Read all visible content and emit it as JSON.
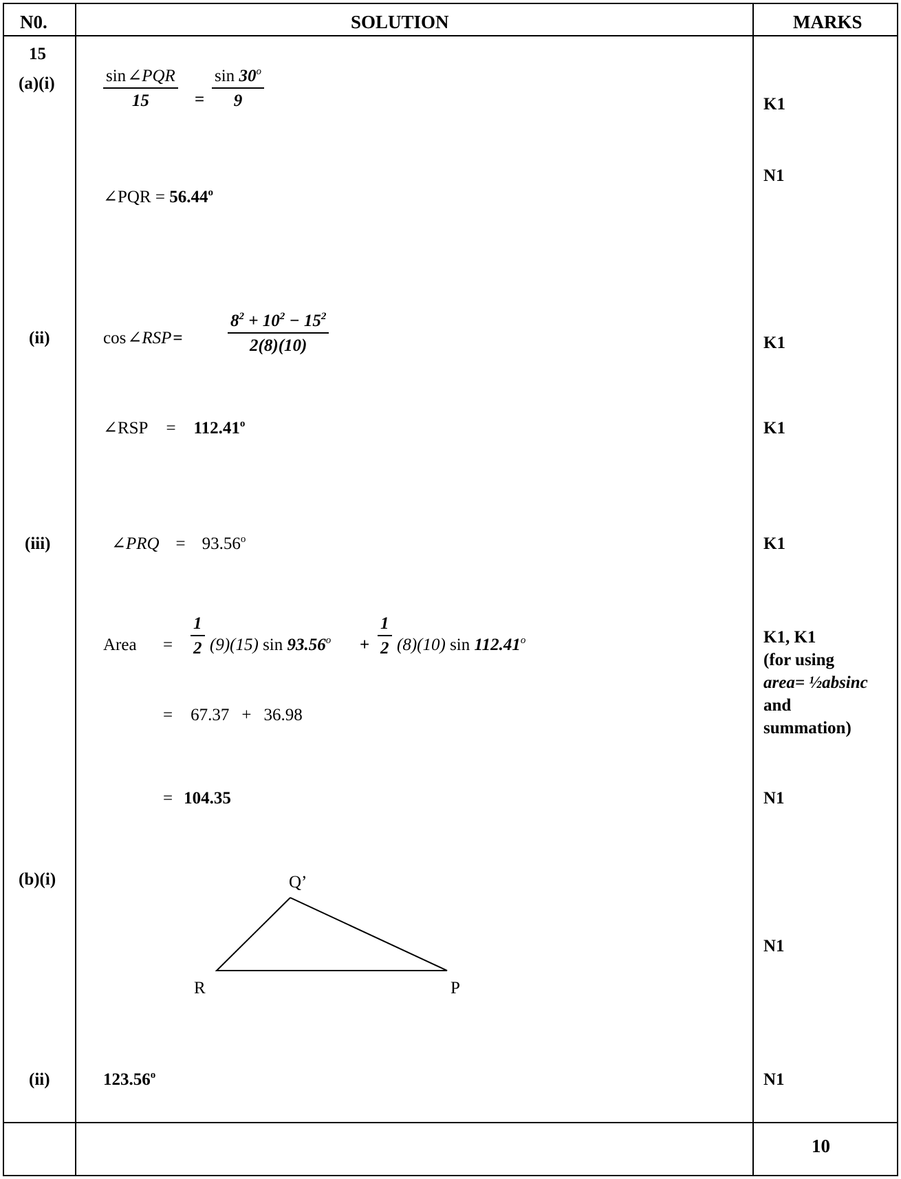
{
  "header": {
    "no": "N0.",
    "solution": "SOLUTION",
    "marks": "MARKS"
  },
  "question": "15",
  "parts": {
    "a_i": "(a)(i)",
    "a_ii": "(ii)",
    "a_iii": "(iii)",
    "b_i": "(b)(i)",
    "b_ii": "(ii)"
  },
  "a_i": {
    "num_fn": "sin",
    "num_angle": "∠PQR",
    "den_left": "15",
    "eq": "=",
    "num_right_fn": "sin",
    "num_right_val": "30",
    "num_right_deg": "o",
    "den_right": "9",
    "result_prefix": "∠PQR = ",
    "result_value": "56.44",
    "result_deg": "o",
    "mark1": "K1",
    "mark2": "N1"
  },
  "a_ii": {
    "lhs_fn": "cos",
    "lhs_angle": "∠RSP",
    "eq": "=",
    "num_a": "8",
    "num_a_exp": "2",
    "num_b": "10",
    "num_b_exp": "2",
    "num_c": "15",
    "num_c_exp": "2",
    "den": "2(8)(10)",
    "result_prefix": "∠RSP",
    "result_eq": "=",
    "result_value": "112.41",
    "result_deg": "o",
    "mark1": "K1",
    "mark2": "K1"
  },
  "a_iii": {
    "angle": "∠PRQ",
    "eq": "=",
    "value": "93.56",
    "deg": "o",
    "mark": "K1",
    "area_label": "Area",
    "area_eq": "=",
    "half_num": "1",
    "half_den": "2",
    "term1_args": "(9)(15)",
    "term1_fn": "sin",
    "term1_angle": "93.56",
    "term1_deg": "o",
    "plus": "+",
    "term2_args": "(8)(10)",
    "term2_fn": "sin",
    "term2_angle": "112.41",
    "term2_deg": "o",
    "line2_eq": "=",
    "line2_a": "67.37",
    "line2_plus": "+",
    "line2_b": "36.98",
    "line3_eq": "=",
    "line3_value": "104.35",
    "mark_k": "K1, K1",
    "mark_note1": "(for using",
    "mark_note2": "area= ½absinc",
    "mark_note3": "and",
    "mark_note4": "summation)",
    "mark_n": "N1"
  },
  "b_i": {
    "label_q": "Q’",
    "label_r": "R",
    "label_p": "P",
    "mark": "N1"
  },
  "b_ii": {
    "value": "123.56",
    "deg": "o",
    "mark": "N1"
  },
  "total": "10"
}
